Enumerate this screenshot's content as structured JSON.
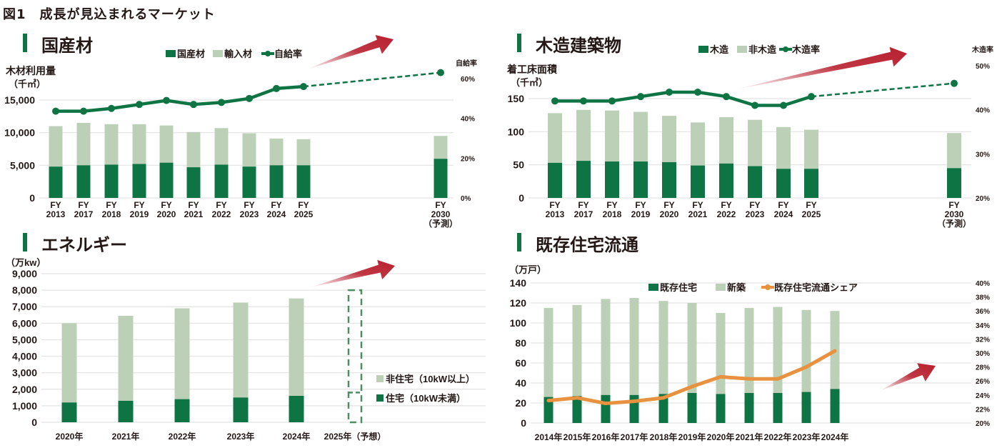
{
  "title": "図1　成長が見込まれるマーケット",
  "colors": {
    "dark_green": "#0f7443",
    "light_green": "#bcd0b8",
    "orange": "#e8913f",
    "red_arrow": "#b8202f",
    "grid": "#e3e3e3"
  },
  "chart_data": [
    {
      "id": "kokusanzai",
      "section_title": "国産材",
      "type": "bar",
      "stacked": true,
      "categories": [
        "FY|2013",
        "FY|2017",
        "FY|2018",
        "FY|2019",
        "FY|2020",
        "FY|2021",
        "FY|2022",
        "FY|2023",
        "FY|2024",
        "FY|2025",
        "FY|2030|（予測）"
      ],
      "ylabel": "木材利用量",
      "yunit": "（千㎥）",
      "y2label": "自給率",
      "ylim": [
        0,
        20000
      ],
      "yticks": [
        "0",
        "5,000",
        "10,000",
        "15,000"
      ],
      "ytick_values": [
        0,
        5000,
        10000,
        15000
      ],
      "y2lim": [
        0,
        70
      ],
      "y2ticks": [
        "0%",
        "20%",
        "40%",
        "60%"
      ],
      "y2tick_values": [
        0,
        20,
        40,
        60
      ],
      "legend": [
        "国産材",
        "輸入材",
        "自給率"
      ],
      "series": [
        {
          "name": "国産材",
          "values": [
            4800,
            5000,
            5100,
            5200,
            5400,
            4700,
            5100,
            4800,
            5000,
            5000,
            6000
          ]
        },
        {
          "name": "輸入材",
          "values": [
            6200,
            6500,
            6200,
            6100,
            5700,
            5400,
            5600,
            5100,
            4100,
            4000,
            3500
          ]
        },
        {
          "name": "自給率",
          "axis": "right",
          "values": [
            43.6,
            43.6,
            45,
            47,
            49,
            47,
            48,
            50,
            55,
            56,
            63
          ],
          "forecast_from_index": 9
        }
      ]
    },
    {
      "id": "mokuzou",
      "section_title": "木造建築物",
      "type": "bar",
      "stacked": true,
      "categories": [
        "FY|2013",
        "FY|2017",
        "FY|2018",
        "FY|2019",
        "FY|2020",
        "FY|2021",
        "FY|2022",
        "FY|2023",
        "FY|2024",
        "FY|2025",
        "FY|2030|（予測）"
      ],
      "ylabel": "着工床面積",
      "yunit": "（千㎥）",
      "y2label": "木造率",
      "ylim": [
        0,
        170
      ],
      "yticks": [
        "0",
        "50",
        "100",
        "150"
      ],
      "ytick_values": [
        0,
        50,
        100,
        150
      ],
      "y2lim": [
        20,
        50
      ],
      "y2ticks": [
        "20%",
        "30%",
        "40%",
        "50%"
      ],
      "y2tick_values": [
        20,
        30,
        40,
        50
      ],
      "legend": [
        "木造",
        "非木造",
        "木造率"
      ],
      "series": [
        {
          "name": "木造",
          "values": [
            53,
            56,
            55,
            55,
            54,
            49,
            52,
            48,
            44,
            44,
            45
          ]
        },
        {
          "name": "非木造",
          "values": [
            75,
            77,
            77,
            75,
            70,
            65,
            70,
            70,
            63,
            59,
            53
          ]
        },
        {
          "name": "木造率",
          "axis": "right",
          "values": [
            42,
            42,
            42,
            43,
            44,
            44,
            43,
            41,
            41,
            43,
            46
          ],
          "forecast_from_index": 9
        }
      ]
    },
    {
      "id": "energy",
      "section_title": "エネルギー",
      "type": "bar",
      "stacked": true,
      "categories": [
        "2020年",
        "2021年",
        "2022年",
        "2023年",
        "2024年",
        "2025年（予想）"
      ],
      "yunit": "（万kw）",
      "ylim": [
        0,
        9000
      ],
      "yticks": [
        "0",
        "1,000",
        "2,000",
        "3,000",
        "4,000",
        "5,000",
        "6,000",
        "7,000",
        "8,000",
        "9,000"
      ],
      "ytick_values": [
        0,
        1000,
        2000,
        3000,
        4000,
        5000,
        6000,
        7000,
        8000,
        9000
      ],
      "legend": [
        "非住宅（10kW以上）",
        "住宅（10kW未満）"
      ],
      "series": [
        {
          "name": "住宅（10kW未満）",
          "values": [
            1200,
            1300,
            1400,
            1500,
            1600,
            1800
          ]
        },
        {
          "name": "非住宅（10kW以上）",
          "values": [
            4800,
            5150,
            5500,
            5750,
            5900,
            6200
          ]
        }
      ],
      "forecast_index": 5
    },
    {
      "id": "kizon",
      "section_title": "既存住宅流通",
      "type": "bar",
      "stacked": true,
      "categories": [
        "2014年",
        "2015年",
        "2016年",
        "2017年",
        "2018年",
        "2019年",
        "2020年",
        "2021年",
        "2022年",
        "2023年",
        "2024年"
      ],
      "yunit": "（万戸）",
      "ylim": [
        0,
        140
      ],
      "yticks": [
        "0",
        "20",
        "40",
        "60",
        "80",
        "100",
        "120",
        "140"
      ],
      "ytick_values": [
        0,
        20,
        40,
        60,
        80,
        100,
        120,
        140
      ],
      "y2lim": [
        20,
        40
      ],
      "y2ticks": [
        "20%",
        "22%",
        "24%",
        "26%",
        "28%",
        "30%",
        "32%",
        "34%",
        "36%",
        "38%",
        "40%"
      ],
      "y2tick_values": [
        20,
        22,
        24,
        26,
        28,
        30,
        32,
        34,
        36,
        38,
        40
      ],
      "legend": [
        "既存住宅",
        "新築",
        "既存住宅流通シェア"
      ],
      "series": [
        {
          "name": "既存住宅",
          "values": [
            26,
            27,
            28,
            28,
            29,
            30,
            29,
            30,
            30,
            31,
            34
          ]
        },
        {
          "name": "新築",
          "values": [
            89,
            91,
            96,
            97,
            93,
            90,
            81,
            85,
            86,
            82,
            78
          ]
        },
        {
          "name": "既存住宅流通シェア",
          "axis": "right",
          "values": [
            23.2,
            23.6,
            22.8,
            23.1,
            23.6,
            25.2,
            26.6,
            26.3,
            26.3,
            28.0,
            30.3
          ]
        }
      ]
    }
  ]
}
